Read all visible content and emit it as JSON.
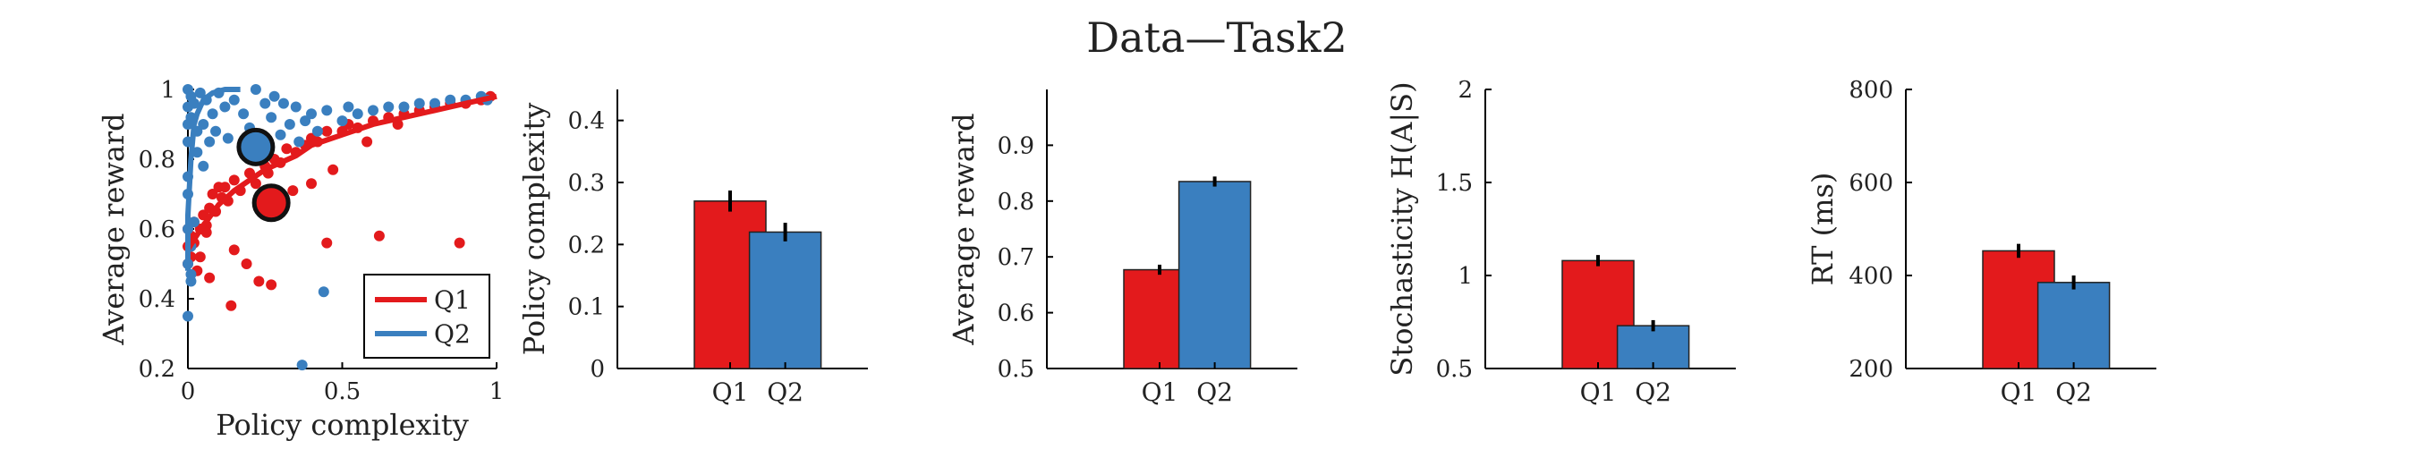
{
  "figure_title": "Data—Task2",
  "colors": {
    "q1": "#e31a1c",
    "q2": "#3a7fbf",
    "axis": "#000000"
  },
  "chart_data": [
    {
      "type": "scatter",
      "xlabel": "Policy complexity",
      "ylabel": "Average reward",
      "xlim": [
        0,
        1
      ],
      "ylim": [
        0.2,
        1
      ],
      "xticks": [
        "0",
        "0.5",
        "1"
      ],
      "yticks": [
        "0.2",
        "0.4",
        "0.6",
        "0.8",
        "1"
      ],
      "legend": {
        "position": "bottom-right",
        "entries": [
          "Q1",
          "Q2"
        ]
      },
      "series": [
        {
          "name": "Q1",
          "color": "#e31a1c",
          "mean": [
            0.27,
            0.675
          ],
          "curve": [
            [
              0.0,
              0.54
            ],
            [
              0.02,
              0.57
            ],
            [
              0.05,
              0.61
            ],
            [
              0.1,
              0.67
            ],
            [
              0.15,
              0.71
            ],
            [
              0.2,
              0.74
            ],
            [
              0.25,
              0.77
            ],
            [
              0.3,
              0.79
            ],
            [
              0.35,
              0.81
            ],
            [
              0.4,
              0.84
            ],
            [
              0.5,
              0.87
            ],
            [
              0.6,
              0.9
            ],
            [
              0.7,
              0.92
            ],
            [
              0.8,
              0.94
            ],
            [
              0.9,
              0.96
            ],
            [
              1.0,
              0.98
            ]
          ],
          "points": [
            [
              0.0,
              0.55
            ],
            [
              0.0,
              0.6
            ],
            [
              0.0,
              0.5
            ],
            [
              0.01,
              0.52
            ],
            [
              0.01,
              0.58
            ],
            [
              0.02,
              0.62
            ],
            [
              0.02,
              0.56
            ],
            [
              0.03,
              0.48
            ],
            [
              0.04,
              0.52
            ],
            [
              0.04,
              0.6
            ],
            [
              0.05,
              0.64
            ],
            [
              0.06,
              0.61
            ],
            [
              0.07,
              0.66
            ],
            [
              0.08,
              0.7
            ],
            [
              0.09,
              0.65
            ],
            [
              0.1,
              0.72
            ],
            [
              0.11,
              0.69
            ],
            [
              0.12,
              0.72
            ],
            [
              0.13,
              0.68
            ],
            [
              0.15,
              0.74
            ],
            [
              0.17,
              0.71
            ],
            [
              0.2,
              0.76
            ],
            [
              0.22,
              0.73
            ],
            [
              0.25,
              0.78
            ],
            [
              0.26,
              0.76
            ],
            [
              0.28,
              0.8
            ],
            [
              0.3,
              0.79
            ],
            [
              0.32,
              0.83
            ],
            [
              0.35,
              0.82
            ],
            [
              0.38,
              0.84
            ],
            [
              0.4,
              0.86
            ],
            [
              0.42,
              0.85
            ],
            [
              0.45,
              0.88
            ],
            [
              0.5,
              0.88
            ],
            [
              0.52,
              0.9
            ],
            [
              0.55,
              0.89
            ],
            [
              0.6,
              0.91
            ],
            [
              0.65,
              0.92
            ],
            [
              0.7,
              0.93
            ],
            [
              0.75,
              0.94
            ],
            [
              0.8,
              0.95
            ],
            [
              0.85,
              0.96
            ],
            [
              0.9,
              0.96
            ],
            [
              0.95,
              0.97
            ],
            [
              0.98,
              0.98
            ],
            [
              0.06,
              0.59
            ],
            [
              0.07,
              0.46
            ],
            [
              0.15,
              0.54
            ],
            [
              0.23,
              0.45
            ],
            [
              0.19,
              0.5
            ],
            [
              0.27,
              0.44
            ],
            [
              0.14,
              0.38
            ],
            [
              0.45,
              0.56
            ],
            [
              0.62,
              0.58
            ],
            [
              0.88,
              0.56
            ],
            [
              0.47,
              0.77
            ],
            [
              0.34,
              0.71
            ],
            [
              0.4,
              0.73
            ],
            [
              0.58,
              0.85
            ],
            [
              0.68,
              0.9
            ]
          ]
        },
        {
          "name": "Q2",
          "color": "#3a7fbf",
          "mean": [
            0.22,
            0.835
          ],
          "curve": [
            [
              0.0,
              0.48
            ],
            [
              0.0,
              0.64
            ],
            [
              0.01,
              0.8
            ],
            [
              0.02,
              0.9
            ],
            [
              0.03,
              0.93
            ],
            [
              0.05,
              0.97
            ],
            [
              0.08,
              0.99
            ],
            [
              0.12,
              1.0
            ],
            [
              0.17,
              1.0
            ]
          ],
          "points": [
            [
              0.0,
              1.0
            ],
            [
              0.0,
              0.95
            ],
            [
              0.0,
              0.9
            ],
            [
              0.0,
              0.85
            ],
            [
              0.0,
              0.75
            ],
            [
              0.0,
              0.7
            ],
            [
              0.0,
              0.6
            ],
            [
              0.0,
              0.5
            ],
            [
              0.01,
              0.98
            ],
            [
              0.01,
              0.92
            ],
            [
              0.01,
              0.55
            ],
            [
              0.01,
              0.45
            ],
            [
              0.02,
              0.96
            ],
            [
              0.02,
              0.62
            ],
            [
              0.03,
              0.88
            ],
            [
              0.03,
              0.82
            ],
            [
              0.04,
              0.99
            ],
            [
              0.05,
              0.9
            ],
            [
              0.05,
              0.78
            ],
            [
              0.06,
              0.97
            ],
            [
              0.07,
              0.85
            ],
            [
              0.08,
              0.93
            ],
            [
              0.09,
              0.88
            ],
            [
              0.1,
              0.99
            ],
            [
              0.12,
              0.95
            ],
            [
              0.13,
              0.86
            ],
            [
              0.15,
              0.97
            ],
            [
              0.18,
              0.93
            ],
            [
              0.2,
              0.89
            ],
            [
              0.22,
              1.0
            ],
            [
              0.25,
              0.96
            ],
            [
              0.27,
              0.92
            ],
            [
              0.28,
              0.98
            ],
            [
              0.3,
              0.87
            ],
            [
              0.33,
              0.9
            ],
            [
              0.35,
              0.95
            ],
            [
              0.38,
              0.91
            ],
            [
              0.4,
              0.93
            ],
            [
              0.42,
              0.88
            ],
            [
              0.45,
              0.94
            ],
            [
              0.5,
              0.91
            ],
            [
              0.52,
              0.95
            ],
            [
              0.55,
              0.93
            ],
            [
              0.6,
              0.94
            ],
            [
              0.65,
              0.95
            ],
            [
              0.7,
              0.95
            ],
            [
              0.75,
              0.96
            ],
            [
              0.8,
              0.96
            ],
            [
              0.85,
              0.97
            ],
            [
              0.9,
              0.97
            ],
            [
              0.95,
              0.98
            ],
            [
              0.97,
              0.97
            ],
            [
              0.0,
              0.35
            ],
            [
              0.01,
              0.47
            ],
            [
              0.37,
              0.21
            ],
            [
              0.44,
              0.42
            ],
            [
              0.36,
              0.85
            ],
            [
              0.31,
              0.96
            ]
          ]
        }
      ]
    },
    {
      "type": "bar",
      "categories": [
        "Q1",
        "Q2"
      ],
      "ylabel": "Policy complexity",
      "ylim": [
        0,
        0.45
      ],
      "yticks": [
        "0",
        "0.1",
        "0.2",
        "0.3",
        "0.4"
      ],
      "values": [
        0.27,
        0.22
      ],
      "errors": [
        0.017,
        0.015
      ]
    },
    {
      "type": "bar",
      "categories": [
        "Q1",
        "Q2"
      ],
      "ylabel": "Average reward",
      "ylim": [
        0.5,
        1.0
      ],
      "yticks": [
        "0.5",
        "0.6",
        "0.7",
        "0.8",
        "0.9"
      ],
      "values": [
        0.677,
        0.835
      ],
      "errors": [
        0.009,
        0.009
      ]
    },
    {
      "type": "bar",
      "categories": [
        "Q1",
        "Q2"
      ],
      "ylabel": "Stochasticity H(A|S)",
      "ylim": [
        0.5,
        2.0
      ],
      "yticks": [
        "0.5",
        "1",
        "1.5",
        "2"
      ],
      "values": [
        1.08,
        0.73
      ],
      "errors": [
        0.03,
        0.03
      ]
    },
    {
      "type": "bar",
      "categories": [
        "Q1",
        "Q2"
      ],
      "ylabel": "RT (ms)",
      "ylim": [
        200,
        800
      ],
      "yticks": [
        "200",
        "400",
        "600",
        "800"
      ],
      "values": [
        453,
        385
      ],
      "errors": [
        15,
        15
      ]
    }
  ]
}
